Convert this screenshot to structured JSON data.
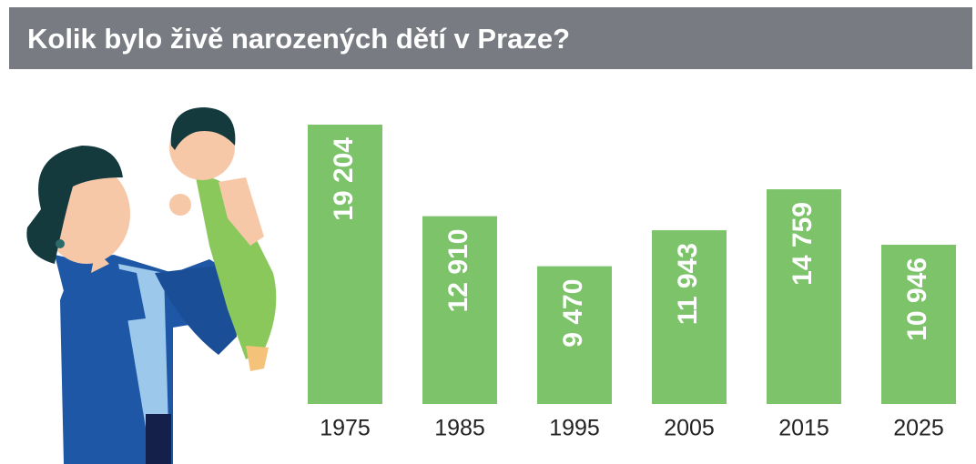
{
  "title": "Kolik bylo živě narozených dětí v Praze?",
  "chart_data": {
    "type": "bar",
    "categories": [
      "1975",
      "1985",
      "1995",
      "2005",
      "2015",
      "2025"
    ],
    "values": [
      19204,
      12910,
      9470,
      11943,
      14759,
      10946
    ],
    "value_labels": [
      "19 204",
      "12 910",
      "9 470",
      "11 943",
      "14 759",
      "10 946"
    ],
    "color": "#7cc36a"
  }
}
